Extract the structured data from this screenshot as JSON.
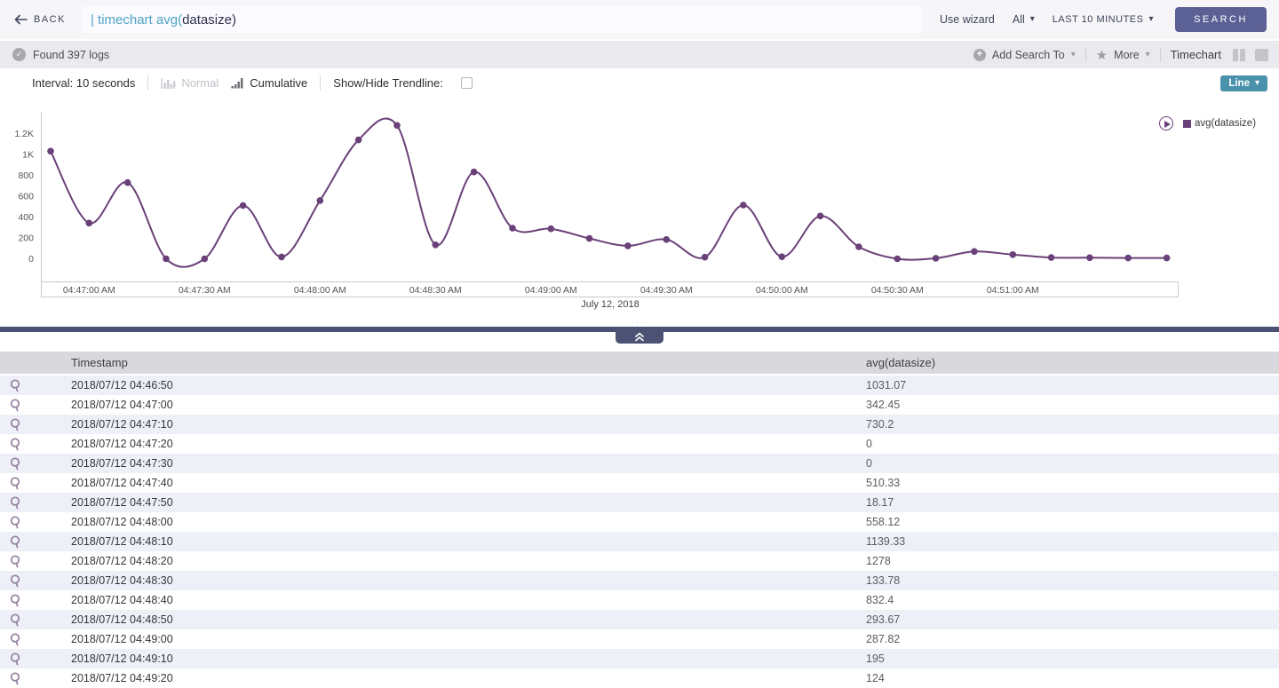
{
  "icons": {
    "caret_down": "▾",
    "star": "★",
    "plus": "+",
    "check": "✓",
    "dots": "····"
  },
  "topbar": {
    "back_label": "BACK",
    "query": "| timechart avg(datasize)",
    "query_teal": "| timechart avg(",
    "query_dark": "datasize)",
    "use_wizard": "Use wizard",
    "scope": "All",
    "time_range": "LAST 10 MINUTES",
    "search_label": "SEARCH"
  },
  "statusbar": {
    "found": "Found 397 logs",
    "add_search_to": "Add Search To",
    "more": "More",
    "view_label": "Timechart"
  },
  "controls": {
    "interval": "Interval: 10 seconds",
    "normal": "Normal",
    "cumulative": "Cumulative",
    "trendline": "Show/Hide Trendline:",
    "chart_type": "Line"
  },
  "chart_data": {
    "type": "line",
    "legend": "avg(datasize)",
    "legend_position": "top-right",
    "grid": false,
    "xlabel": "July 12, 2018",
    "ylim": [
      0,
      1380
    ],
    "y_tick_labels": [
      "0",
      "200",
      "400",
      "600",
      "800",
      "1K",
      "1.2K"
    ],
    "y_tick_values": [
      0,
      200,
      400,
      600,
      800,
      1000,
      1200
    ],
    "x_tick_labels": [
      "04:47:00 AM",
      "04:47:30 AM",
      "04:48:00 AM",
      "04:48:30 AM",
      "04:49:00 AM",
      "04:49:30 AM",
      "04:50:00 AM",
      "04:50:30 AM",
      "04:51:00 AM"
    ],
    "x": [
      "04:46:50",
      "04:47:00",
      "04:47:10",
      "04:47:20",
      "04:47:30",
      "04:47:40",
      "04:47:50",
      "04:48:00",
      "04:48:10",
      "04:48:20",
      "04:48:30",
      "04:48:40",
      "04:48:50",
      "04:49:00",
      "04:49:10",
      "04:49:20",
      "04:49:30",
      "04:49:40",
      "04:49:50",
      "04:50:00",
      "04:50:10",
      "04:50:20",
      "04:50:30",
      "04:50:40",
      "04:50:50",
      "04:51:00",
      "04:51:10",
      "04:51:20",
      "04:51:30",
      "04:51:40"
    ],
    "series": [
      {
        "name": "avg(datasize)",
        "color": "#6a4078",
        "values": [
          1031.07,
          342.45,
          730.2,
          0,
          0,
          510.33,
          18.17,
          558.12,
          1139.33,
          1278,
          133.78,
          832.4,
          293.67,
          287.82,
          195,
          124,
          185,
          15,
          515,
          20,
          410,
          115,
          0,
          5,
          70,
          40,
          12,
          10,
          8,
          8
        ]
      }
    ]
  },
  "table": {
    "columns": [
      "Timestamp",
      "avg(datasize)"
    ],
    "rows": [
      [
        "2018/07/12 04:46:50",
        "1031.07"
      ],
      [
        "2018/07/12 04:47:00",
        "342.45"
      ],
      [
        "2018/07/12 04:47:10",
        "730.2"
      ],
      [
        "2018/07/12 04:47:20",
        "0"
      ],
      [
        "2018/07/12 04:47:30",
        "0"
      ],
      [
        "2018/07/12 04:47:40",
        "510.33"
      ],
      [
        "2018/07/12 04:47:50",
        "18.17"
      ],
      [
        "2018/07/12 04:48:00",
        "558.12"
      ],
      [
        "2018/07/12 04:48:10",
        "1139.33"
      ],
      [
        "2018/07/12 04:48:20",
        "1278"
      ],
      [
        "2018/07/12 04:48:30",
        "133.78"
      ],
      [
        "2018/07/12 04:48:40",
        "832.4"
      ],
      [
        "2018/07/12 04:48:50",
        "293.67"
      ],
      [
        "2018/07/12 04:49:00",
        "287.82"
      ],
      [
        "2018/07/12 04:49:10",
        "195"
      ],
      [
        "2018/07/12 04:49:20",
        "124"
      ]
    ]
  }
}
